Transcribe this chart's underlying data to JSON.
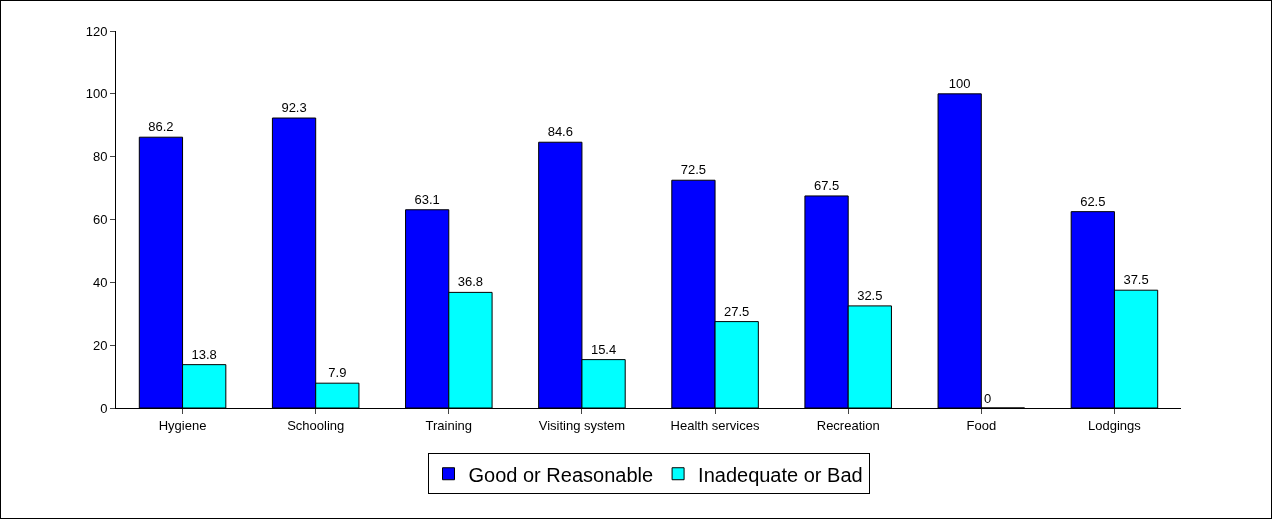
{
  "chart_data": {
    "type": "bar",
    "categories": [
      "Hygiene",
      "Schooling",
      "Training",
      "Visiting system",
      "Health services",
      "Recreation",
      "Food",
      "Lodgings"
    ],
    "series": [
      {
        "name": "Good or Reasonable",
        "color": "#0000ff",
        "values": [
          86.2,
          92.3,
          63.1,
          84.6,
          72.5,
          67.5,
          100,
          62.5
        ]
      },
      {
        "name": "Inadequate or Bad",
        "color": "#00ffff",
        "values": [
          13.8,
          7.9,
          36.8,
          15.4,
          27.5,
          32.5,
          0,
          37.5
        ]
      }
    ],
    "ylim": [
      0,
      120
    ],
    "yticks": [
      0,
      20,
      40,
      60,
      80,
      100,
      120
    ],
    "grid": false,
    "legend": "bottom",
    "data_labels": true
  }
}
